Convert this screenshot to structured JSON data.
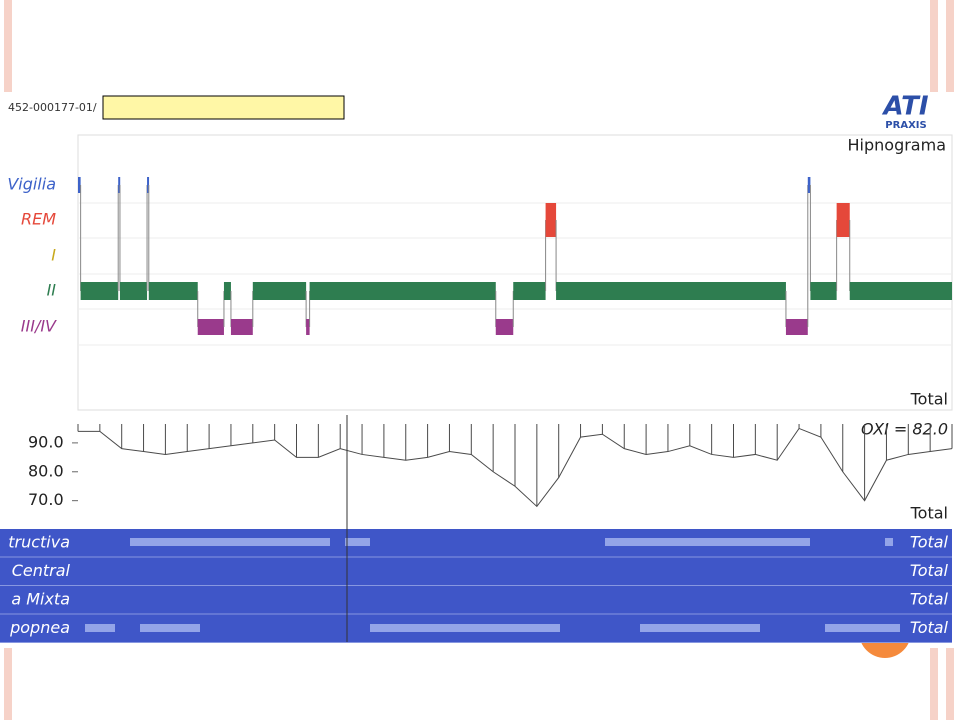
{
  "header": {
    "code": "452-000177-01/",
    "logo_top": "ATI",
    "logo_bottom": "PRAXIS"
  },
  "chart_data": [
    {
      "type": "hypnogram",
      "title": "Hipnograma",
      "stages": [
        "Vigilia",
        "REM",
        "I",
        "II",
        "III/IV"
      ],
      "stage_colors": [
        "#3d62c9",
        "#e5483a",
        "#c8a91c",
        "#2e7d50",
        "#9a3a8c"
      ],
      "xlim": [
        0,
        100
      ],
      "segments": [
        {
          "stage": 0,
          "start": 0,
          "end": 0.3
        },
        {
          "stage": 3,
          "start": 0.3,
          "end": 4.6
        },
        {
          "stage": 0,
          "start": 4.6,
          "end": 4.8
        },
        {
          "stage": 3,
          "start": 4.8,
          "end": 7.9
        },
        {
          "stage": 0,
          "start": 7.9,
          "end": 8.1
        },
        {
          "stage": 3,
          "start": 8.1,
          "end": 13.7
        },
        {
          "stage": 4,
          "start": 13.7,
          "end": 16.7
        },
        {
          "stage": 3,
          "start": 16.7,
          "end": 17.5
        },
        {
          "stage": 4,
          "start": 17.5,
          "end": 20.0
        },
        {
          "stage": 3,
          "start": 20.0,
          "end": 26.1
        },
        {
          "stage": 4,
          "start": 26.1,
          "end": 26.5
        },
        {
          "stage": 3,
          "start": 26.5,
          "end": 47.8
        },
        {
          "stage": 4,
          "start": 47.8,
          "end": 49.8
        },
        {
          "stage": 3,
          "start": 49.8,
          "end": 53.5
        },
        {
          "stage": 1,
          "start": 53.5,
          "end": 54.7
        },
        {
          "stage": 3,
          "start": 54.7,
          "end": 81.0
        },
        {
          "stage": 4,
          "start": 81.0,
          "end": 83.5
        },
        {
          "stage": 0,
          "start": 83.5,
          "end": 83.8
        },
        {
          "stage": 3,
          "start": 83.8,
          "end": 86.8
        },
        {
          "stage": 1,
          "start": 86.8,
          "end": 88.3
        },
        {
          "stage": 3,
          "start": 88.3,
          "end": 100
        }
      ],
      "total_label": "Total"
    },
    {
      "type": "spikes",
      "label": "OXI = 82.0",
      "color": "#4a4a4a",
      "xlim": [
        0,
        100
      ],
      "ylim": [
        64,
        100
      ],
      "yticks": [
        {
          "value": 90,
          "label": "90.0"
        },
        {
          "value": 80,
          "label": "80.0"
        },
        {
          "value": 70,
          "label": "70.0"
        }
      ],
      "x": [
        0,
        2.5,
        5,
        7.5,
        10,
        12.5,
        15,
        17.5,
        20,
        22.5,
        25,
        27.5,
        30,
        32.5,
        35,
        37.5,
        40,
        42.5,
        45,
        47.5,
        50,
        52.5,
        55,
        57.5,
        60,
        62.5,
        65,
        67.5,
        70,
        72.5,
        75,
        77.5,
        80,
        82.5,
        85,
        87.5,
        90,
        92.5,
        95,
        97.5,
        100
      ],
      "values": [
        94,
        94,
        88,
        87,
        86,
        87,
        88,
        89,
        90,
        91,
        85,
        85,
        88,
        86,
        85,
        84,
        85,
        87,
        86,
        80,
        75,
        68,
        78,
        92,
        93,
        88,
        86,
        87,
        89,
        86,
        85,
        86,
        84,
        95,
        92,
        80,
        70,
        84,
        86,
        87,
        88
      ],
      "total_label": "Total"
    }
  ],
  "events": {
    "rows": [
      {
        "name": "tructiva",
        "total": "Total"
      },
      {
        "name": "Central",
        "total": "Total"
      },
      {
        "name": "a Mixta",
        "total": "Total"
      },
      {
        "name": "popnea",
        "total": "Total"
      }
    ]
  }
}
